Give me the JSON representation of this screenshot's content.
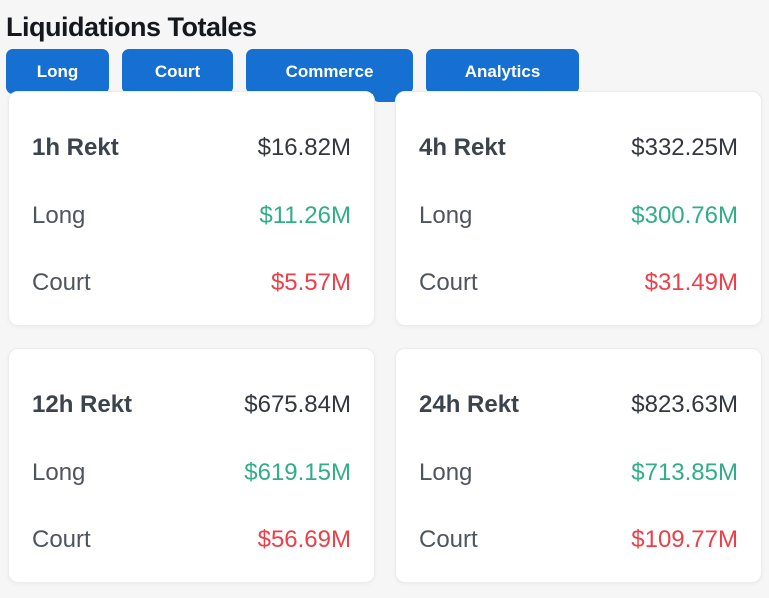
{
  "page": {
    "title": "Liquidations Totales"
  },
  "tabs": [
    {
      "label": "Long",
      "active": false
    },
    {
      "label": "Court",
      "active": false
    },
    {
      "label": "Commerce",
      "active": true
    },
    {
      "label": "Analytics",
      "active": false
    }
  ],
  "colors": {
    "accent_blue": "#1570d2",
    "long_green": "#2fae87",
    "short_red": "#ee3e48",
    "neutral_dark": "#33373e",
    "page_background": "#f6f6f7"
  },
  "cards": [
    {
      "period_label": "1h Rekt",
      "total_value": "$16.82M",
      "long_label": "Long",
      "long_value": "$11.26M",
      "short_label": "Court",
      "short_value": "$5.57M"
    },
    {
      "period_label": "4h Rekt",
      "total_value": "$332.25M",
      "long_label": "Long",
      "long_value": "$300.76M",
      "short_label": "Court",
      "short_value": "$31.49M"
    },
    {
      "period_label": "12h Rekt",
      "total_value": "$675.84M",
      "long_label": "Long",
      "long_value": "$619.15M",
      "short_label": "Court",
      "short_value": "$56.69M"
    },
    {
      "period_label": "24h Rekt",
      "total_value": "$823.63M",
      "long_label": "Long",
      "long_value": "$713.85M",
      "short_label": "Court",
      "short_value": "$109.77M"
    }
  ]
}
